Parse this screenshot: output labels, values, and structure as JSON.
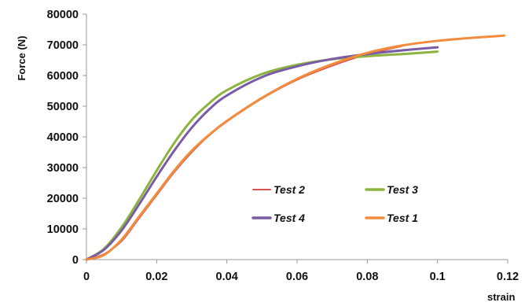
{
  "chart_data": {
    "type": "line",
    "title": "",
    "xlabel": "strain",
    "ylabel": "Force (N)",
    "xlim": [
      0,
      0.12
    ],
    "ylim": [
      0,
      80000
    ],
    "x_ticks": [
      "0",
      "0.02",
      "0.04",
      "0.06",
      "0.08",
      "0.1",
      "0.12"
    ],
    "y_ticks": [
      "0",
      "10000",
      "20000",
      "30000",
      "40000",
      "50000",
      "60000",
      "70000",
      "80000"
    ],
    "grid": false,
    "legend_position": "bottom-right inside plot",
    "legend_order": [
      "Test 2",
      "Test 3",
      "Test 4",
      "Test 1"
    ],
    "series": [
      {
        "name": "Test 2",
        "color": "#d9534f",
        "x": [
          0,
          0.005,
          0.01,
          0.015,
          0.02,
          0.025,
          0.03,
          0.035,
          0.04,
          0.05,
          0.06,
          0.07,
          0.08,
          0.09
        ],
        "y": [
          0,
          1800,
          6000,
          13500,
          21000,
          28500,
          35000,
          40500,
          45000,
          52500,
          58600,
          63200,
          66900,
          69600
        ]
      },
      {
        "name": "Test 3",
        "color": "#8cb43f",
        "x": [
          0,
          0.005,
          0.01,
          0.015,
          0.02,
          0.025,
          0.03,
          0.035,
          0.04,
          0.05,
          0.06,
          0.07,
          0.08,
          0.09,
          0.1
        ],
        "y": [
          0,
          3500,
          10500,
          19500,
          29000,
          38000,
          45500,
          51000,
          55200,
          60500,
          63500,
          65300,
          66300,
          67000,
          67800
        ]
      },
      {
        "name": "Test 4",
        "color": "#7a5ba6",
        "x": [
          0,
          0.005,
          0.01,
          0.015,
          0.02,
          0.025,
          0.03,
          0.035,
          0.04,
          0.05,
          0.06,
          0.07,
          0.08,
          0.09,
          0.1
        ],
        "y": [
          0,
          3200,
          9500,
          18000,
          27000,
          35500,
          43000,
          49000,
          53500,
          59500,
          63000,
          65400,
          67000,
          68200,
          69200
        ]
      },
      {
        "name": "Test 1",
        "color": "#f28c3c",
        "x": [
          0,
          0.005,
          0.01,
          0.015,
          0.02,
          0.025,
          0.03,
          0.035,
          0.04,
          0.05,
          0.06,
          0.07,
          0.08,
          0.09,
          0.1,
          0.11,
          0.119
        ],
        "y": [
          0,
          1500,
          6500,
          14000,
          21500,
          29000,
          35500,
          40700,
          45200,
          52700,
          58900,
          63700,
          67400,
          69800,
          71300,
          72300,
          73000
        ]
      }
    ]
  }
}
